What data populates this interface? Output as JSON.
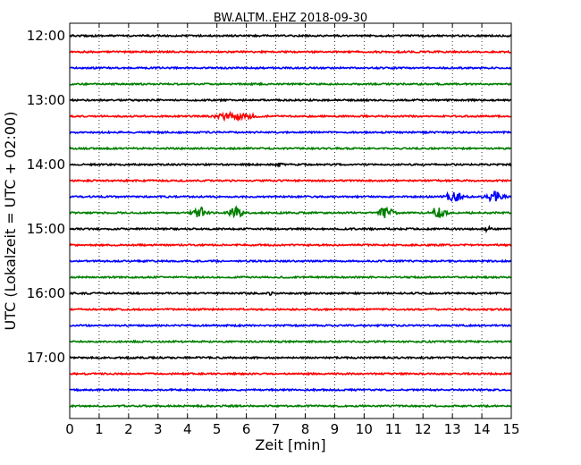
{
  "chart_data": {
    "type": "line",
    "title": "BW.ALTM..EHZ 2018-09-30",
    "xlabel": "Zeit  [min]",
    "ylabel": "UTC (Lokalzeit = UTC + 02:00)",
    "xlim": [
      0,
      15
    ],
    "x_ticks": [
      "0",
      "1",
      "2",
      "3",
      "4",
      "5",
      "6",
      "7",
      "8",
      "9",
      "10",
      "11",
      "12",
      "13",
      "14",
      "15"
    ],
    "y_ticks": [
      "12:00",
      "13:00",
      "14:00",
      "15:00",
      "16:00",
      "17:00"
    ],
    "grid": "vertical-dotted",
    "trace_interval_min": 15,
    "trace_colors": [
      "#000000",
      "#ff0000",
      "#0000ff",
      "#007f00"
    ],
    "traces": [
      {
        "start": "12:00",
        "events": []
      },
      {
        "start": "12:15",
        "events": []
      },
      {
        "start": "12:30",
        "events": []
      },
      {
        "start": "12:45",
        "events": []
      },
      {
        "start": "13:00",
        "events": []
      },
      {
        "start": "13:15",
        "events": [
          {
            "t": 5.3,
            "width": 0.35,
            "amp": 3
          },
          {
            "t": 5.9,
            "width": 0.45,
            "amp": 2
          }
        ]
      },
      {
        "start": "13:30",
        "events": []
      },
      {
        "start": "13:45",
        "events": []
      },
      {
        "start": "14:00",
        "events": [
          {
            "t": 7.1,
            "width": 0.1,
            "amp": 2
          }
        ]
      },
      {
        "start": "14:15",
        "events": []
      },
      {
        "start": "14:30",
        "events": [
          {
            "t": 13.05,
            "width": 0.25,
            "amp": 6
          },
          {
            "t": 14.45,
            "width": 0.25,
            "amp": 6
          }
        ]
      },
      {
        "start": "14:45",
        "events": [
          {
            "t": 4.4,
            "width": 0.22,
            "amp": 6
          },
          {
            "t": 5.65,
            "width": 0.22,
            "amp": 6
          },
          {
            "t": 10.75,
            "width": 0.22,
            "amp": 7
          },
          {
            "t": 12.5,
            "width": 0.22,
            "amp": 6
          }
        ]
      },
      {
        "start": "15:00",
        "events": [
          {
            "t": 14.2,
            "width": 0.1,
            "amp": 2
          }
        ]
      },
      {
        "start": "15:15",
        "events": []
      },
      {
        "start": "15:30",
        "events": []
      },
      {
        "start": "15:45",
        "events": []
      },
      {
        "start": "16:00",
        "events": [
          {
            "t": 6.8,
            "width": 0.08,
            "amp": 2
          }
        ]
      },
      {
        "start": "16:15",
        "events": []
      },
      {
        "start": "16:30",
        "events": []
      },
      {
        "start": "16:45",
        "events": []
      },
      {
        "start": "17:00",
        "events": []
      },
      {
        "start": "17:15",
        "events": []
      },
      {
        "start": "17:30",
        "events": []
      },
      {
        "start": "17:45",
        "events": []
      }
    ]
  }
}
